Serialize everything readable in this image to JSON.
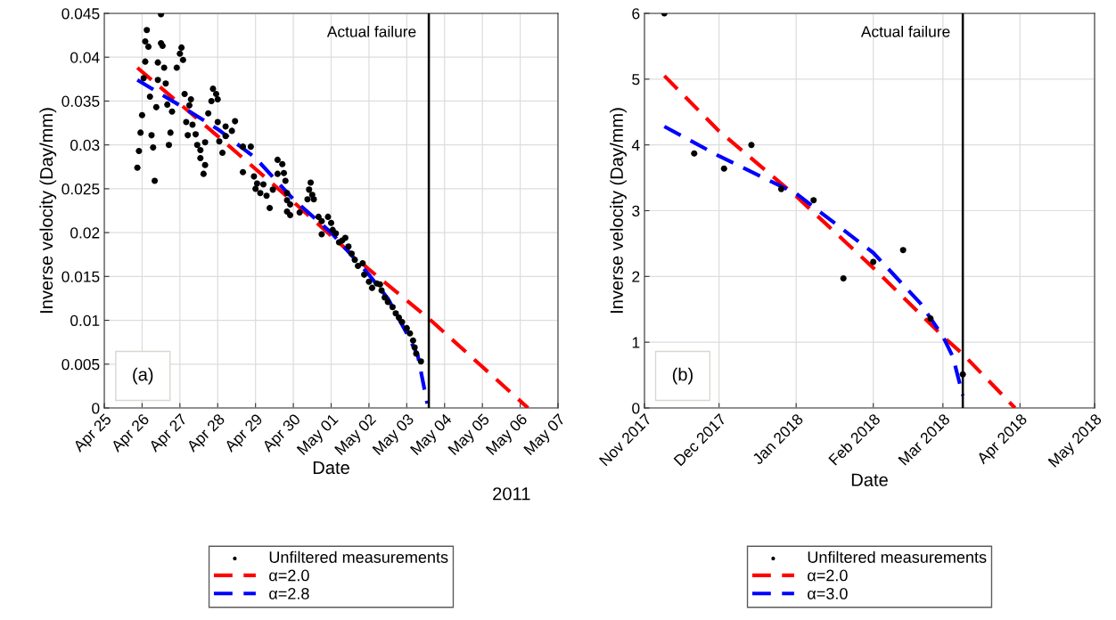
{
  "chart_data": [
    {
      "type": "scatter",
      "xlabel": "Date",
      "ylabel": "Inverse velocity (Day/mm)",
      "annotations": [
        "(a)",
        "2011"
      ],
      "xlim": [
        "2011-04-25",
        "2011-05-07"
      ],
      "ylim": [
        0,
        0.045
      ],
      "xticks": [
        {
          "value": "2011-04-25",
          "label": "Apr 25"
        },
        {
          "value": "2011-04-26",
          "label": "Apr 26"
        },
        {
          "value": "2011-04-27",
          "label": "Apr 27"
        },
        {
          "value": "2011-04-28",
          "label": "Apr 28"
        },
        {
          "value": "2011-04-29",
          "label": "Apr 29"
        },
        {
          "value": "2011-04-30",
          "label": "Apr 30"
        },
        {
          "value": "2011-05-01",
          "label": "May 01"
        },
        {
          "value": "2011-05-02",
          "label": "May 02"
        },
        {
          "value": "2011-05-03",
          "label": "May 03"
        },
        {
          "value": "2011-05-04",
          "label": "May 04"
        },
        {
          "value": "2011-05-05",
          "label": "May 05"
        },
        {
          "value": "2011-05-06",
          "label": "May 06"
        },
        {
          "value": "2011-05-07",
          "label": "May 07"
        }
      ],
      "yticks": [
        0,
        0.005,
        0.01,
        0.015,
        0.02,
        0.025,
        0.03,
        0.035,
        0.04,
        0.045
      ],
      "grid": true,
      "legend": "bottom",
      "ref_lines": [
        {
          "axis": "x",
          "value": "2011-05-03T14:00",
          "label": "Actual failure",
          "color": "#000000",
          "line_style": "solid"
        }
      ],
      "series": [
        {
          "name": "Unfiltered measurements",
          "marker": "circle",
          "color": "#000000",
          "x": [
            "2011-04-26T12:00",
            "2011-04-26T03:00",
            "2011-04-26T02:00",
            "2011-04-26T04:00",
            "2011-04-26T12:00",
            "2011-04-26T13:00",
            "2011-04-27T01:00",
            "2011-04-27T00:00",
            "2011-04-27T02:00",
            "2011-04-26T02:00",
            "2011-04-26T10:00",
            "2011-04-26T14:00",
            "2011-04-26T22:00",
            "2011-04-26T01:00",
            "2011-04-26T10:00",
            "2011-04-26T15:00",
            "2011-04-26T05:00",
            "2011-04-26T09:00",
            "2011-04-26T16:00",
            "2011-04-26T19:00",
            "2011-04-27T03:00",
            "2011-04-27T07:00",
            "2011-04-27T06:00",
            "2011-04-26T00:00",
            "2011-04-25T23:00",
            "2011-04-26T06:00",
            "2011-04-26T18:00",
            "2011-04-27T04:00",
            "2011-04-27T08:00",
            "2011-04-27T05:00",
            "2011-04-27T10:00",
            "2011-04-25T22:00",
            "2011-04-26T07:00",
            "2011-04-26T17:00",
            "2011-04-27T11:00",
            "2011-04-27T13:00",
            "2011-04-27T13:00",
            "2011-04-27T16:00",
            "2011-04-27T15:00",
            "2011-04-25T21:00",
            "2011-04-26T08:00",
            "2011-04-27T16:00",
            "2011-04-27T21:00",
            "2011-04-27T23:00",
            "2011-04-27T20:00",
            "2011-04-28T00:00",
            "2011-04-27T18:00",
            "2011-04-28T00:00",
            "2011-04-28T05:00",
            "2011-04-28T11:00",
            "2011-04-28T09:00",
            "2011-04-28T05:00",
            "2011-04-28T03:00",
            "2011-04-28T01:00",
            "2011-04-28T16:00",
            "2011-04-28T21:00",
            "2011-04-28T16:00",
            "2011-04-28T23:00",
            "2011-04-29T14:00",
            "2011-04-29T17:00",
            "2011-04-29T14:00",
            "2011-04-29T18:00",
            "2011-04-29T19:00",
            "2011-04-29T01:00",
            "2011-04-29T03:00",
            "2011-04-29T07:00",
            "2011-04-29T09:00",
            "2011-04-29T05:00",
            "2011-04-29T00:00",
            "2011-04-29T11:00",
            "2011-04-29T20:00",
            "2011-04-29T20:00",
            "2011-04-29T22:00",
            "2011-04-29T20:00",
            "2011-04-29T22:00",
            "2011-04-30T04:00",
            "2011-04-30T11:00",
            "2011-04-30T10:00",
            "2011-04-30T12:00",
            "2011-04-30T13:00",
            "2011-04-30T09:00",
            "2011-04-30T16:00",
            "2011-04-30T18:00",
            "2011-04-30T22:00",
            "2011-05-01T00:00",
            "2011-04-30T18:00",
            "2011-05-01T01:00",
            "2011-05-01T03:00",
            "2011-05-01T05:00",
            "2011-05-01T09:00",
            "2011-05-01T07:00",
            "2011-05-01T11:00",
            "2011-05-01T13:00",
            "2011-05-01T15:00",
            "2011-05-01T17:00",
            "2011-05-01T20:00",
            "2011-05-01T21:00",
            "2011-05-02T00:00",
            "2011-05-02T02:00",
            "2011-05-02T05:00",
            "2011-05-02T07:00",
            "2011-05-02T08:00",
            "2011-05-02T10:00",
            "2011-05-02T12:00",
            "2011-05-02T15:00",
            "2011-05-02T17:00",
            "2011-05-02T19:00",
            "2011-05-02T21:00",
            "2011-05-03T00:00",
            "2011-05-03T02:00",
            "2011-05-03T04:00",
            "2011-05-03T05:00",
            "2011-05-03T06:00",
            "2011-05-03T09:00"
          ],
          "values": [
            0.0449,
            0.0431,
            0.0418,
            0.0412,
            0.0416,
            0.0413,
            0.0411,
            0.0404,
            0.0397,
            0.0395,
            0.0394,
            0.0388,
            0.0388,
            0.0376,
            0.0374,
            0.037,
            0.0355,
            0.0343,
            0.0346,
            0.0338,
            0.0358,
            0.0352,
            0.0345,
            0.0334,
            0.0314,
            0.0311,
            0.0314,
            0.0326,
            0.0323,
            0.0311,
            0.0312,
            0.0293,
            0.0297,
            0.03,
            0.03,
            0.0294,
            0.0285,
            0.0277,
            0.0267,
            0.0274,
            0.0259,
            0.0303,
            0.0364,
            0.0358,
            0.035,
            0.0352,
            0.0336,
            0.0326,
            0.0321,
            0.0327,
            0.0316,
            0.031,
            0.0291,
            0.0304,
            0.0298,
            0.0298,
            0.0269,
            0.0264,
            0.0283,
            0.0278,
            0.0267,
            0.0268,
            0.0259,
            0.0256,
            0.0245,
            0.0242,
            0.0228,
            0.0255,
            0.025,
            0.0249,
            0.0245,
            0.0237,
            0.0232,
            0.0224,
            0.022,
            0.0223,
            0.0257,
            0.0249,
            0.0243,
            0.0238,
            0.0238,
            0.0218,
            0.0213,
            0.0218,
            0.0211,
            0.0198,
            0.0203,
            0.0199,
            0.0189,
            0.0194,
            0.0191,
            0.0184,
            0.0176,
            0.0169,
            0.0162,
            0.0165,
            0.0152,
            0.0144,
            0.0137,
            0.0142,
            0.0141,
            0.0134,
            0.0126,
            0.0121,
            0.0115,
            0.0108,
            0.0103,
            0.0098,
            0.0091,
            0.0085,
            0.0077,
            0.0069,
            0.0062,
            0.0053
          ]
        },
        {
          "name": "α=2.0",
          "type": "line",
          "line_style": "dashed",
          "color": "#ff0000",
          "x": [
            "2011-04-25T21:00",
            "2011-04-28T00:00",
            "2011-04-30T00:00",
            "2011-05-02T00:00",
            "2011-05-03T14:00",
            "2011-05-06T05:00"
          ],
          "values": [
            0.0388,
            0.031,
            0.0235,
            0.0158,
            0.0102,
            0
          ]
        },
        {
          "name": "α=2.8",
          "type": "line",
          "line_style": "dashed",
          "color": "#0000ff",
          "x": [
            "2011-04-25T21:00",
            "2011-04-27T00:00",
            "2011-04-28T00:00",
            "2011-04-29T00:00",
            "2011-04-30T00:00",
            "2011-05-01T00:00",
            "2011-05-02T00:00",
            "2011-05-02T12:00",
            "2011-05-03T00:00",
            "2011-05-03T07:00",
            "2011-05-03T13:00"
          ],
          "values": [
            0.0374,
            0.0345,
            0.0318,
            0.0285,
            0.0238,
            0.02,
            0.0152,
            0.0125,
            0.0085,
            0.006,
            0.0005
          ]
        }
      ]
    },
    {
      "type": "scatter",
      "xlabel": "Date",
      "ylabel": "Inverse velocity (Day/mm)",
      "annotations": [
        "(b)"
      ],
      "xlim": [
        "2017-11-01",
        "2018-05-01"
      ],
      "ylim": [
        0,
        6
      ],
      "xticks": [
        {
          "value": "2017-11-01",
          "label": "Nov 2017"
        },
        {
          "value": "2017-12-01",
          "label": "Dec 2017"
        },
        {
          "value": "2018-01-01",
          "label": "Jan 2018"
        },
        {
          "value": "2018-02-01",
          "label": "Feb 2018"
        },
        {
          "value": "2018-03-01",
          "label": "Mar 2018"
        },
        {
          "value": "2018-04-01",
          "label": "Apr 2018"
        },
        {
          "value": "2018-05-01",
          "label": "May 2018"
        }
      ],
      "yticks": [
        0,
        1,
        2,
        3,
        4,
        5,
        6
      ],
      "grid": true,
      "legend": "bottom",
      "ref_lines": [
        {
          "axis": "x",
          "value": "2018-03-09",
          "label": "Actual failure",
          "color": "#000000",
          "line_style": "solid"
        }
      ],
      "series": [
        {
          "name": "Unfiltered measurements",
          "marker": "circle",
          "color": "#000000",
          "x": [
            "2017-11-09",
            "2017-11-21",
            "2017-12-03",
            "2017-12-14",
            "2017-12-26",
            "2018-01-08",
            "2018-01-20",
            "2018-02-01",
            "2018-02-13",
            "2018-02-24",
            "2018-03-09"
          ],
          "values": [
            6.0,
            3.87,
            3.64,
            4.0,
            3.33,
            3.16,
            1.97,
            2.22,
            2.4,
            1.36,
            0.51
          ]
        },
        {
          "name": "α=2.0",
          "type": "line",
          "line_style": "dashed",
          "color": "#ff0000",
          "x": [
            "2017-11-09",
            "2017-12-01",
            "2018-01-01",
            "2018-02-01",
            "2018-03-01",
            "2018-03-09",
            "2018-03-30"
          ],
          "values": [
            5.05,
            4.21,
            3.22,
            2.13,
            1.09,
            0.82,
            0
          ]
        },
        {
          "name": "α=3.0",
          "type": "line",
          "line_style": "dashed",
          "color": "#0000ff",
          "x": [
            "2017-11-09",
            "2017-12-01",
            "2018-01-01",
            "2018-02-01",
            "2018-02-20",
            "2018-03-01",
            "2018-03-05",
            "2018-03-09"
          ],
          "values": [
            4.28,
            3.83,
            3.26,
            2.36,
            1.59,
            1.09,
            0.78,
            0.19
          ]
        }
      ]
    }
  ]
}
